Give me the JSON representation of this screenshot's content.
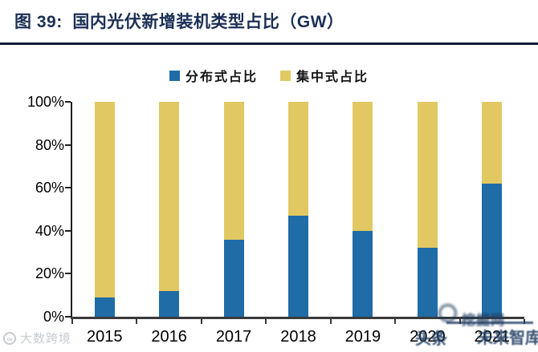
{
  "header": {
    "title": "图 39:  国内光伏新增装机类型占比（GW）"
  },
  "legend": [
    {
      "label": "分布式占比",
      "color": "#1F6CA6"
    },
    {
      "label": "集中式占比",
      "color": "#E2C862"
    }
  ],
  "chart_data": {
    "type": "bar",
    "stacked": true,
    "title": "国内光伏新增装机类型占比（GW）",
    "categories": [
      "2015",
      "2016",
      "2017",
      "2018",
      "2019",
      "2020",
      "2021"
    ],
    "series": [
      {
        "name": "分布式占比",
        "color": "#1F6CA6",
        "values": [
          9,
          12,
          36,
          47,
          40,
          32,
          62
        ]
      },
      {
        "name": "集中式占比",
        "color": "#E2C862",
        "values": [
          91,
          88,
          64,
          53,
          60,
          68,
          38
        ]
      }
    ],
    "xlabel": "",
    "ylabel": "",
    "ylim": [
      0,
      100
    ],
    "y_ticks": [
      "0%",
      "20%",
      "40%",
      "60%",
      "80%",
      "100%"
    ],
    "y_tick_values": [
      0,
      20,
      40,
      60,
      80,
      100
    ],
    "value_unit": "%",
    "grid": false,
    "legend_position": "top-center"
  },
  "colors": {
    "title_navy": "#1B2F55",
    "divider": "#0F1E38",
    "axis": "#1f1f1f",
    "distributed_blue": "#1F6CA6",
    "centralized_yellow": "#E2C862"
  },
  "watermarks": {
    "bottom_left": {
      "logo": "infinity-circle-logo",
      "logo_glyph": "∞",
      "text": "大数跨境",
      "color": "#C7CBD0"
    },
    "bottom_right": {
      "logo": "circle-logo",
      "line1_illegible": "挖掘",
      "line1_suffix": "网",
      "line2_left": "头条",
      "line2_right": "未来智库",
      "color": "#1D3A5F"
    }
  }
}
